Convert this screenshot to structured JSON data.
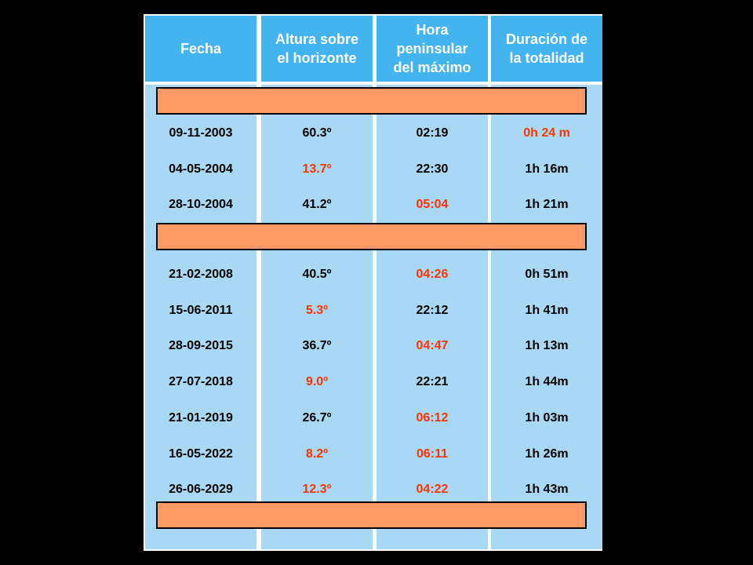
{
  "colors": {
    "background": "#000000",
    "header_bg": "#44b4f0",
    "column_bg": "#a9d8f5",
    "separator_bar": "#ff9966",
    "highlight_text": "#ff3300"
  },
  "headers": [
    {
      "lines": [
        "Fecha"
      ]
    },
    {
      "lines": [
        "Altura sobre",
        "el horizonte"
      ]
    },
    {
      "lines": [
        "Hora",
        "peninsular",
        "del máximo"
      ]
    },
    {
      "lines": [
        "Duración de",
        "la totalidad"
      ]
    }
  ],
  "groups": [
    {
      "rows": [
        {
          "cells": [
            {
              "text": "09-11-2003",
              "highlight": false
            },
            {
              "text": "60.3º",
              "highlight": false
            },
            {
              "text": "02:19",
              "highlight": false
            },
            {
              "text": "0h 24 m",
              "highlight": true
            }
          ]
        },
        {
          "cells": [
            {
              "text": "04-05-2004",
              "highlight": false
            },
            {
              "text": "13.7º",
              "highlight": true
            },
            {
              "text": "22:30",
              "highlight": false
            },
            {
              "text": "1h 16m",
              "highlight": false
            }
          ]
        },
        {
          "cells": [
            {
              "text": "28-10-2004",
              "highlight": false
            },
            {
              "text": "41.2º",
              "highlight": false
            },
            {
              "text": "05:04",
              "highlight": true
            },
            {
              "text": "1h 21m",
              "highlight": false
            }
          ]
        }
      ]
    },
    {
      "rows": [
        {
          "cells": [
            {
              "text": "21-02-2008",
              "highlight": false
            },
            {
              "text": "40.5º",
              "highlight": false
            },
            {
              "text": "04:26",
              "highlight": true
            },
            {
              "text": "0h 51m",
              "highlight": false
            }
          ]
        },
        {
          "cells": [
            {
              "text": "15-06-2011",
              "highlight": false
            },
            {
              "text": "5.3º",
              "highlight": true
            },
            {
              "text": "22:12",
              "highlight": false
            },
            {
              "text": "1h 41m",
              "highlight": false
            }
          ]
        },
        {
          "cells": [
            {
              "text": "28-09-2015",
              "highlight": false
            },
            {
              "text": "36.7º",
              "highlight": false
            },
            {
              "text": "04:47",
              "highlight": true
            },
            {
              "text": "1h 13m",
              "highlight": false
            }
          ]
        },
        {
          "cells": [
            {
              "text": "27-07-2018",
              "highlight": false
            },
            {
              "text": "9.0º",
              "highlight": true
            },
            {
              "text": "22:21",
              "highlight": false
            },
            {
              "text": "1h 44m",
              "highlight": false
            }
          ]
        },
        {
          "cells": [
            {
              "text": "21-01-2019",
              "highlight": false
            },
            {
              "text": "26.7º",
              "highlight": false
            },
            {
              "text": "06:12",
              "highlight": true
            },
            {
              "text": "1h 03m",
              "highlight": false
            }
          ]
        },
        {
          "cells": [
            {
              "text": "16-05-2022",
              "highlight": false
            },
            {
              "text": "8.2º",
              "highlight": true
            },
            {
              "text": "06:11",
              "highlight": true
            },
            {
              "text": "1h 26m",
              "highlight": false
            }
          ]
        },
        {
          "cells": [
            {
              "text": "26-06-2029",
              "highlight": false
            },
            {
              "text": "12.3º",
              "highlight": true
            },
            {
              "text": "04:22",
              "highlight": true
            },
            {
              "text": "1h 43m",
              "highlight": false
            }
          ]
        }
      ]
    }
  ]
}
